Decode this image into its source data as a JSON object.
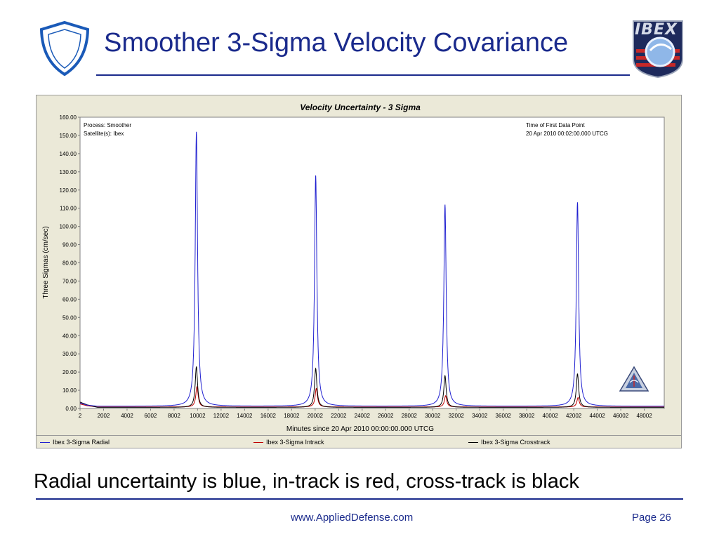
{
  "slide": {
    "title": "Smoother 3-Sigma Velocity Covariance",
    "caption": "Radial uncertainty is blue, in-track is red, cross-track is black",
    "footer_url": "www.AppliedDefense.com",
    "footer_page": "Page 26",
    "badge_text": "IBEX",
    "accent_color": "#1a2a8c"
  },
  "chart_data": {
    "type": "line",
    "title": "Velocity Uncertainty - 3 Sigma",
    "xlabel": "Minutes since 20 Apr 2010 00:00:00.000 UTCG",
    "ylabel": "Three Sigmas (cm/sec)",
    "xlim": [
      2,
      49700
    ],
    "ylim": [
      0,
      160
    ],
    "x_ticks": [
      2,
      2002,
      4002,
      6002,
      8002,
      10002,
      12002,
      14002,
      16002,
      18002,
      20002,
      22002,
      24002,
      26002,
      28002,
      30002,
      32002,
      34002,
      36002,
      38002,
      40002,
      42002,
      44002,
      46002,
      48002
    ],
    "y_ticks": [
      "0.00",
      "10.00",
      "20.00",
      "30.00",
      "40.00",
      "50.00",
      "60.00",
      "70.00",
      "80.00",
      "90.00",
      "100.00",
      "110.00",
      "120.00",
      "130.00",
      "140.00",
      "150.00",
      "160.00"
    ],
    "grid": false,
    "legend_position": "bottom",
    "annotation_left": [
      "Process: Smoother",
      "Satellite(s): Ibex"
    ],
    "annotation_right": [
      "Time of First Data Point",
      "20 Apr 2010 00:02:00.000 UTCG"
    ],
    "series": [
      {
        "name": "Ibex 3-Sigma Radial",
        "color": "#2020d0",
        "baseline": 1.2,
        "points": [
          [
            2,
            3.0
          ],
          [
            600,
            1.8
          ],
          [
            1500,
            1.2
          ]
        ],
        "peaks": [
          [
            9900,
            152
          ],
          [
            20050,
            128
          ],
          [
            31050,
            112
          ],
          [
            42320,
            113
          ]
        ]
      },
      {
        "name": "Ibex 3-Sigma Intrack",
        "color": "#c00000",
        "baseline": 0.8,
        "points": [
          [
            2,
            2.5
          ],
          [
            600,
            1.5
          ],
          [
            1500,
            0.8
          ]
        ],
        "peaks": [
          [
            9950,
            12
          ],
          [
            20100,
            11
          ],
          [
            31100,
            7
          ],
          [
            42370,
            6
          ]
        ]
      },
      {
        "name": "Ibex 3-Sigma Crosstrack",
        "color": "#000000",
        "baseline": 0.6,
        "points": [
          [
            2,
            3.5
          ],
          [
            600,
            2.0
          ],
          [
            1500,
            0.6
          ]
        ],
        "peaks": [
          [
            9900,
            23
          ],
          [
            20050,
            22
          ],
          [
            31050,
            18
          ],
          [
            42320,
            19
          ]
        ]
      }
    ]
  }
}
